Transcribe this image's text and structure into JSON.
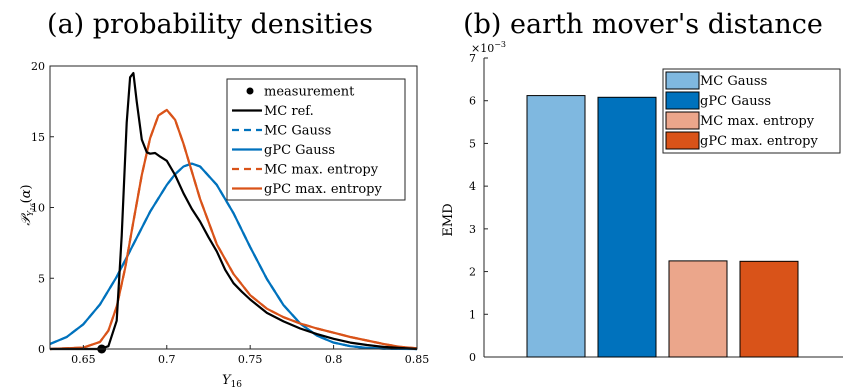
{
  "chart_data": [
    {
      "panel": "a",
      "type": "line",
      "title": "(a) probability densities",
      "xlabel": "Y16",
      "ylabel": "P_{Y16}(α)",
      "xlim": [
        0.63,
        0.85
      ],
      "ylim": [
        0,
        20
      ],
      "xticks": [
        0.65,
        0.7,
        0.75,
        0.8,
        0.85
      ],
      "yticks": [
        0,
        5,
        10,
        15,
        20
      ],
      "legend_position": "top-right",
      "series": [
        {
          "name": "measurement",
          "style": "marker",
          "color": "#000000",
          "x": [
            0.661
          ],
          "y": [
            0
          ]
        },
        {
          "name": "MC ref.",
          "style": "solid",
          "color": "#000000",
          "x": [
            0.63,
            0.66,
            0.665,
            0.67,
            0.673,
            0.676,
            0.678,
            0.68,
            0.682,
            0.685,
            0.688,
            0.69,
            0.693,
            0.696,
            0.7,
            0.705,
            0.71,
            0.715,
            0.72,
            0.725,
            0.73,
            0.735,
            0.74,
            0.745,
            0.75,
            0.76,
            0.77,
            0.78,
            0.79,
            0.8,
            0.81,
            0.82,
            0.83,
            0.84,
            0.85
          ],
          "y": [
            0,
            0,
            0.2,
            2,
            8,
            16,
            19.2,
            19.5,
            17.5,
            14.8,
            13.9,
            13.8,
            13.85,
            13.6,
            13.3,
            12.3,
            11,
            9.9,
            9,
            7.9,
            6.9,
            5.6,
            4.65,
            4.05,
            3.5,
            2.55,
            1.95,
            1.45,
            1.05,
            0.72,
            0.45,
            0.28,
            0.15,
            0.07,
            0
          ]
        },
        {
          "name": "MC Gauss",
          "style": "dashed",
          "color": "#0072bd",
          "x": [
            0.63,
            0.64,
            0.65,
            0.66,
            0.67,
            0.68,
            0.69,
            0.7,
            0.705,
            0.71,
            0.715,
            0.72,
            0.73,
            0.74,
            0.75,
            0.76,
            0.77,
            0.78,
            0.79,
            0.8,
            0.81,
            0.82,
            0.83,
            0.84,
            0.85
          ],
          "y": [
            0.35,
            0.85,
            1.75,
            3.15,
            5.1,
            7.4,
            9.7,
            11.6,
            12.35,
            12.9,
            13.1,
            12.9,
            11.6,
            9.6,
            7.2,
            4.95,
            3.1,
            1.8,
            0.95,
            0.45,
            0.2,
            0.08,
            0.03,
            0.01,
            0
          ]
        },
        {
          "name": "gPC Gauss",
          "style": "solid",
          "color": "#0072bd",
          "x": [
            0.63,
            0.64,
            0.65,
            0.66,
            0.67,
            0.68,
            0.69,
            0.7,
            0.705,
            0.71,
            0.715,
            0.72,
            0.73,
            0.74,
            0.75,
            0.76,
            0.77,
            0.78,
            0.79,
            0.8,
            0.81,
            0.82,
            0.83,
            0.84,
            0.85
          ],
          "y": [
            0.35,
            0.85,
            1.75,
            3.15,
            5.1,
            7.4,
            9.7,
            11.6,
            12.35,
            12.9,
            13.1,
            12.9,
            11.6,
            9.6,
            7.2,
            4.95,
            3.1,
            1.8,
            0.95,
            0.45,
            0.2,
            0.08,
            0.03,
            0.01,
            0
          ]
        },
        {
          "name": "MC max. entropy",
          "style": "dashed",
          "color": "#d95319",
          "x": [
            0.63,
            0.65,
            0.66,
            0.665,
            0.67,
            0.675,
            0.68,
            0.685,
            0.69,
            0.695,
            0.7,
            0.705,
            0.71,
            0.72,
            0.73,
            0.74,
            0.75,
            0.76,
            0.77,
            0.78,
            0.79,
            0.8,
            0.81,
            0.82,
            0.83,
            0.84,
            0.85
          ],
          "y": [
            0,
            0.1,
            0.5,
            1.3,
            3,
            5.7,
            9,
            12.3,
            14.9,
            16.5,
            16.9,
            16.2,
            14.5,
            10.6,
            7.4,
            5.3,
            3.8,
            2.85,
            2.25,
            1.8,
            1.45,
            1.15,
            0.85,
            0.6,
            0.35,
            0.15,
            0.05
          ]
        },
        {
          "name": "gPC max. entropy",
          "style": "solid",
          "color": "#d95319",
          "x": [
            0.63,
            0.65,
            0.66,
            0.665,
            0.67,
            0.675,
            0.68,
            0.685,
            0.69,
            0.695,
            0.7,
            0.705,
            0.71,
            0.72,
            0.73,
            0.74,
            0.75,
            0.76,
            0.77,
            0.78,
            0.79,
            0.8,
            0.81,
            0.82,
            0.83,
            0.84,
            0.85
          ],
          "y": [
            0,
            0.1,
            0.5,
            1.3,
            3,
            5.7,
            9,
            12.3,
            14.9,
            16.5,
            16.9,
            16.2,
            14.5,
            10.6,
            7.4,
            5.3,
            3.8,
            2.85,
            2.25,
            1.8,
            1.45,
            1.15,
            0.85,
            0.6,
            0.35,
            0.15,
            0.05
          ]
        }
      ]
    },
    {
      "panel": "b",
      "type": "bar",
      "title": "(b) earth mover's distance",
      "ylabel": "EMD",
      "ylim": [
        0,
        7
      ],
      "yticks": [
        0,
        1,
        2,
        3,
        4,
        5,
        6,
        7
      ],
      "y_exponent": "× 10^-3",
      "legend_position": "top-right",
      "series": [
        {
          "name": "MC Gauss",
          "color": "#7fb8e0",
          "value": 6.12
        },
        {
          "name": "gPC Gauss",
          "color": "#0072bd",
          "value": 6.08
        },
        {
          "name": "MC max. entropy",
          "color": "#eba68b",
          "value": 2.25
        },
        {
          "name": "gPC max. entropy",
          "color": "#d95319",
          "value": 2.24
        }
      ]
    }
  ]
}
